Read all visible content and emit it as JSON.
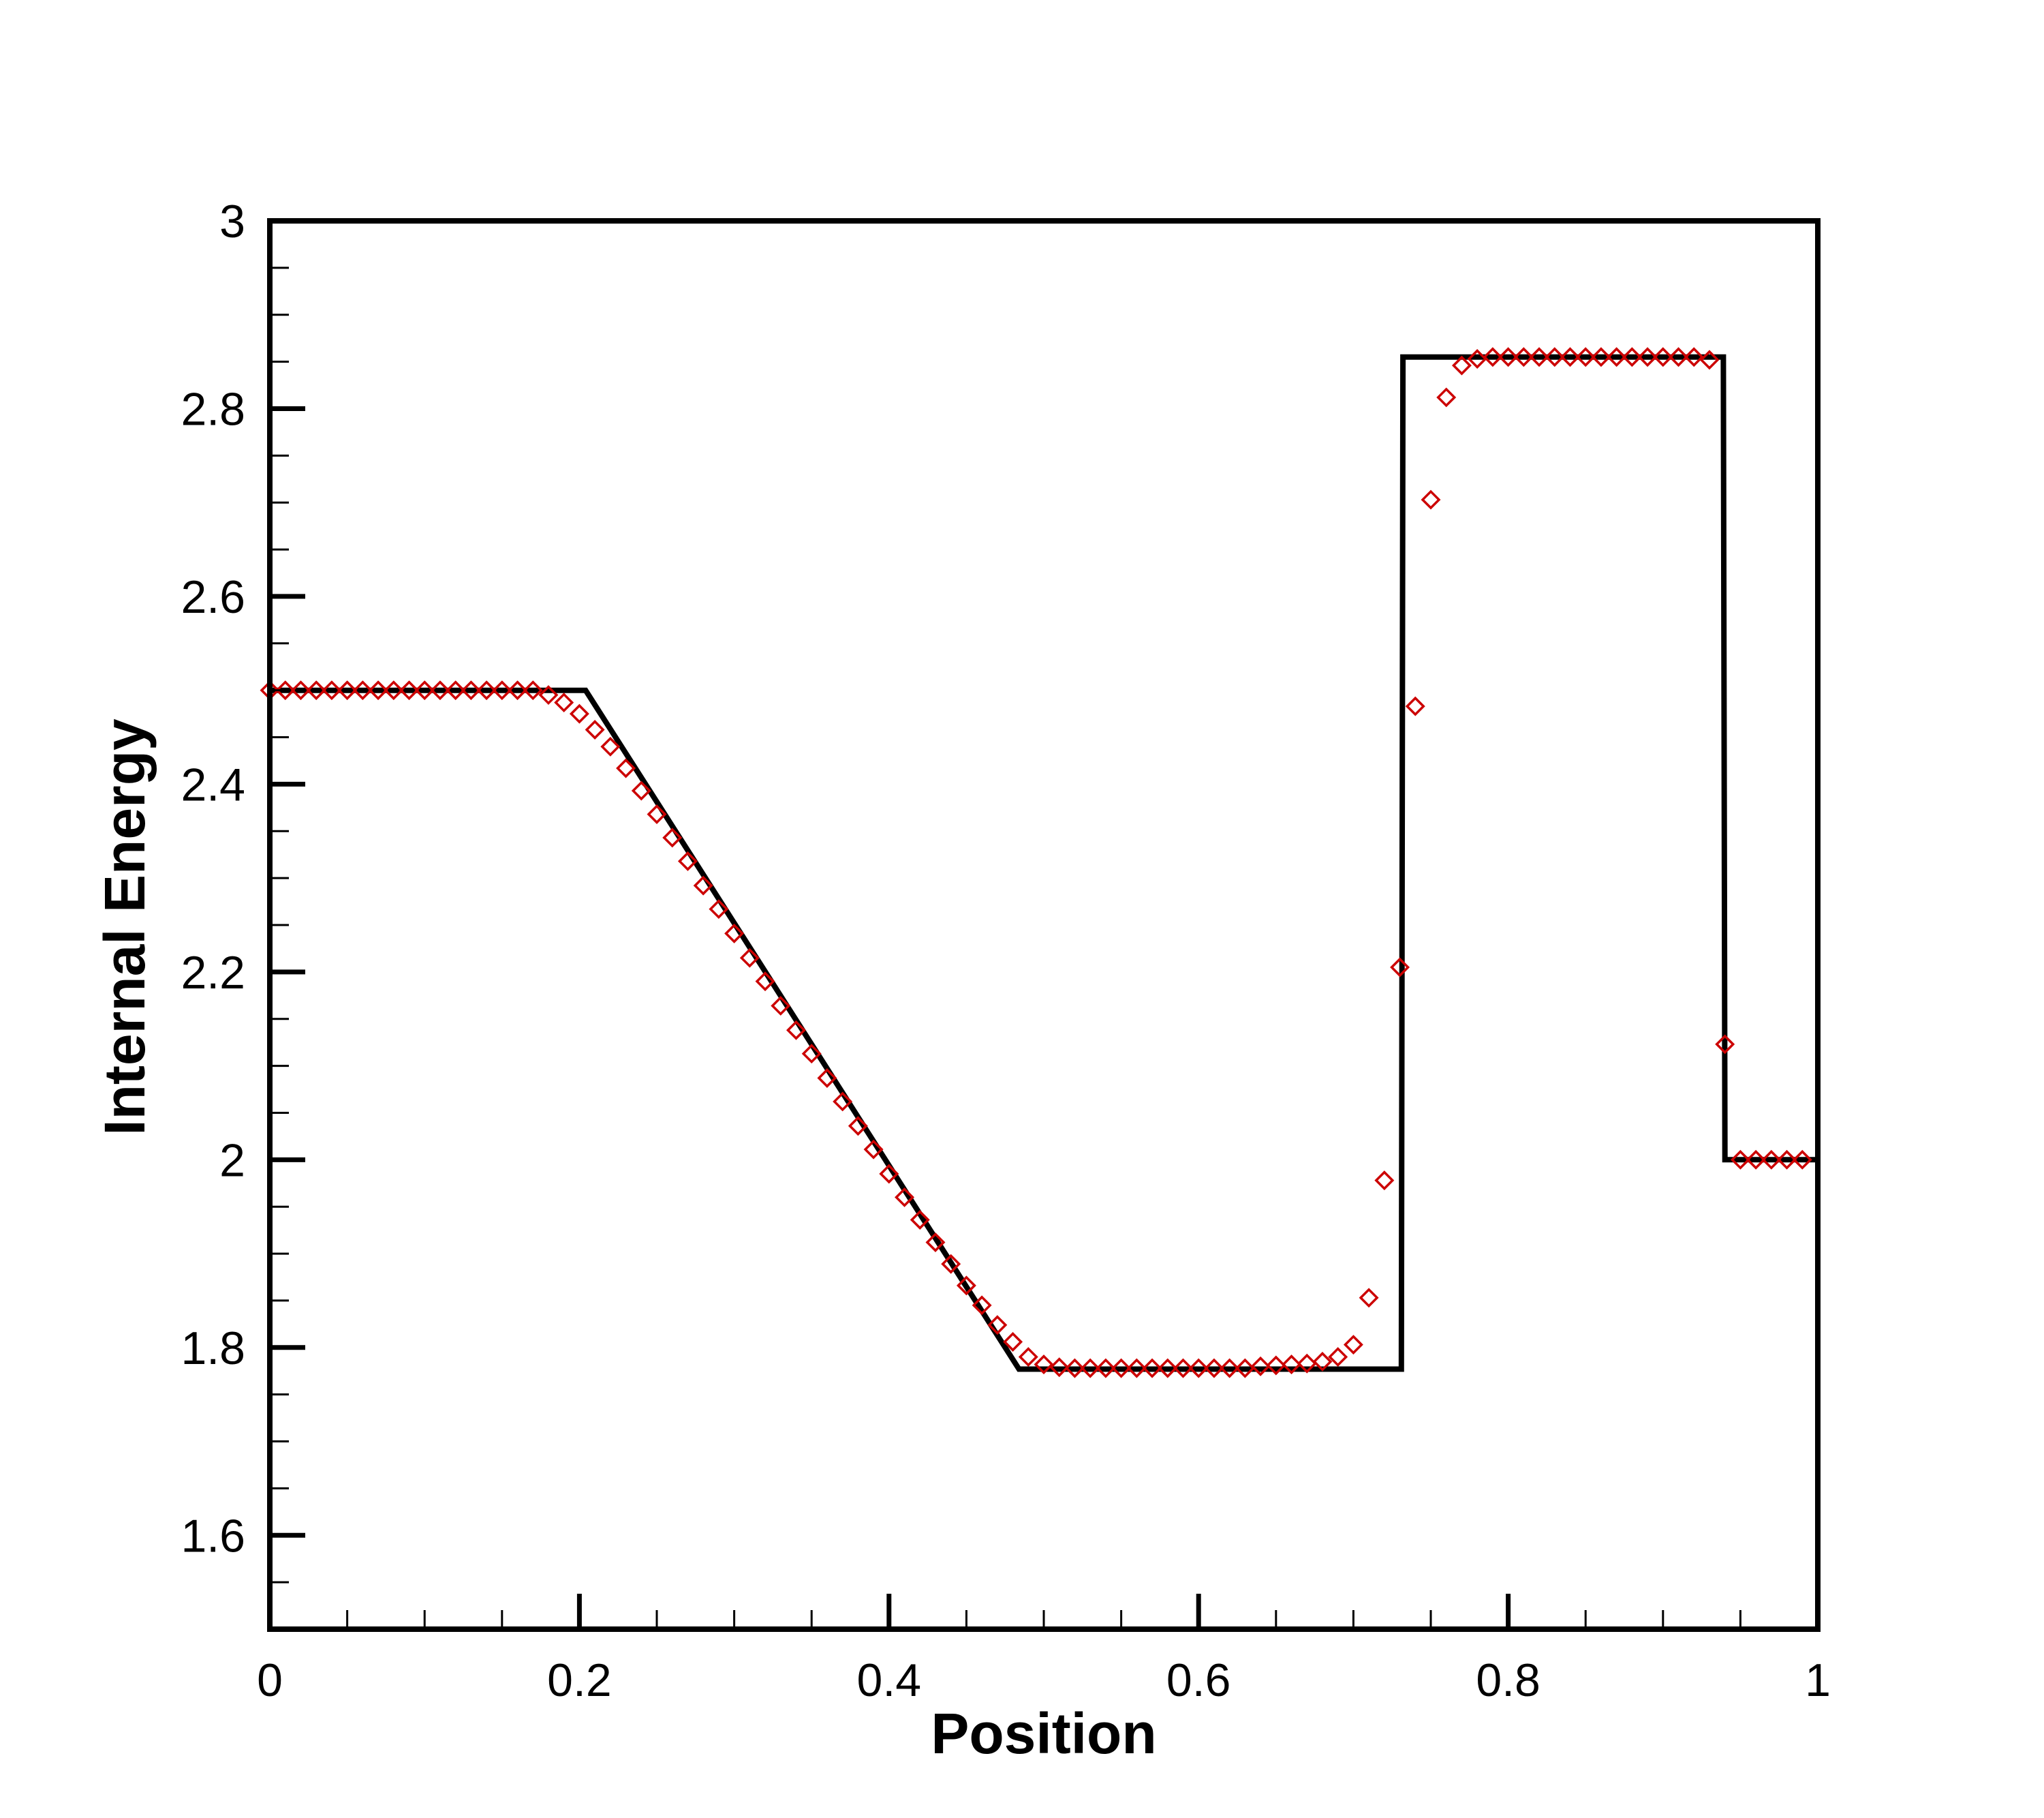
{
  "chart_data": {
    "type": "line",
    "title": "",
    "xlabel": "Position",
    "ylabel": "Internal Energy",
    "xlim": [
      0,
      1
    ],
    "ylim": [
      1.5,
      3.0
    ],
    "xticks": [
      0,
      0.2,
      0.4,
      0.6,
      0.8,
      1
    ],
    "xtick_labels": [
      "0",
      "0.2",
      "0.4",
      "0.6",
      "0.8",
      "1"
    ],
    "x_minor_step": 0.05,
    "yticks": [
      1.6,
      1.8,
      2.0,
      2.2,
      2.4,
      2.6,
      2.8,
      3.0
    ],
    "ytick_labels": [
      "1.6",
      "1.8",
      "2",
      "2.2",
      "2.4",
      "2.6",
      "2.8",
      "3"
    ],
    "y_minor_step": 0.05,
    "grid": false,
    "legend": "none",
    "series": [
      {
        "style": "solid-line",
        "color": "#000000",
        "x": [
          0,
          0.204,
          0.484,
          0.731,
          0.732,
          0.939,
          0.94,
          1.0
        ],
        "y": [
          2.5,
          2.5,
          1.777,
          1.777,
          2.855,
          2.855,
          2.0,
          2.0
        ]
      },
      {
        "style": "diamond-markers",
        "color": "#cc0000",
        "x": [
          0,
          0.01,
          0.02,
          0.03,
          0.04,
          0.05,
          0.06,
          0.07,
          0.08,
          0.09,
          0.1,
          0.11,
          0.12,
          0.13,
          0.14,
          0.15,
          0.16,
          0.17,
          0.18,
          0.19,
          0.2,
          0.21,
          0.22,
          0.23,
          0.24,
          0.25,
          0.26,
          0.27,
          0.28,
          0.29,
          0.3,
          0.31,
          0.32,
          0.33,
          0.34,
          0.35,
          0.36,
          0.37,
          0.38,
          0.39,
          0.4,
          0.41,
          0.42,
          0.43,
          0.44,
          0.45,
          0.46,
          0.47,
          0.48,
          0.49,
          0.5,
          0.51,
          0.52,
          0.53,
          0.54,
          0.55,
          0.56,
          0.57,
          0.58,
          0.59,
          0.6,
          0.61,
          0.62,
          0.63,
          0.64,
          0.65,
          0.66,
          0.67,
          0.68,
          0.69,
          0.7,
          0.71,
          0.72,
          0.73,
          0.74,
          0.75,
          0.76,
          0.77,
          0.78,
          0.79,
          0.8,
          0.81,
          0.82,
          0.83,
          0.84,
          0.85,
          0.86,
          0.87,
          0.88,
          0.89,
          0.9,
          0.91,
          0.92,
          0.93,
          0.94,
          0.95,
          0.96,
          0.97,
          0.98,
          0.99
        ],
        "y": [
          2.5,
          2.5,
          2.5,
          2.5,
          2.5,
          2.5,
          2.5,
          2.5,
          2.5,
          2.5,
          2.5,
          2.5,
          2.5,
          2.5,
          2.5,
          2.5,
          2.5,
          2.5,
          2.495,
          2.487,
          2.475,
          2.458,
          2.44,
          2.417,
          2.393,
          2.368,
          2.343,
          2.318,
          2.292,
          2.267,
          2.241,
          2.215,
          2.19,
          2.164,
          2.138,
          2.113,
          2.087,
          2.062,
          2.036,
          2.011,
          1.985,
          1.96,
          1.936,
          1.912,
          1.889,
          1.866,
          1.845,
          1.824,
          1.806,
          1.79,
          1.782,
          1.779,
          1.778,
          1.778,
          1.778,
          1.778,
          1.778,
          1.778,
          1.778,
          1.778,
          1.778,
          1.778,
          1.778,
          1.778,
          1.78,
          1.781,
          1.782,
          1.783,
          1.785,
          1.79,
          1.803,
          1.853,
          1.978,
          2.205,
          2.483,
          2.703,
          2.812,
          2.846,
          2.853,
          2.855,
          2.855,
          2.855,
          2.855,
          2.855,
          2.855,
          2.855,
          2.855,
          2.855,
          2.855,
          2.855,
          2.855,
          2.855,
          2.855,
          2.852,
          2.123,
          2.0,
          2.0,
          2.0,
          2.0,
          2.0
        ]
      }
    ]
  }
}
